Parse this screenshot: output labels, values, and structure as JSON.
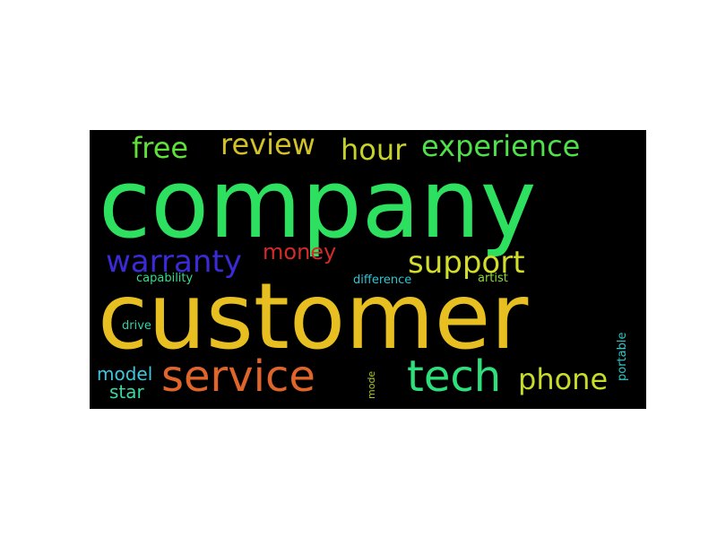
{
  "word_cloud": {
    "background": "#000000",
    "words": [
      {
        "text": "company",
        "color": "#2ee05f"
      },
      {
        "text": "customer",
        "color": "#e8bf21"
      },
      {
        "text": "service",
        "color": "#e0652a"
      },
      {
        "text": "tech",
        "color": "#2ee07c"
      },
      {
        "text": "free",
        "color": "#5fe03a"
      },
      {
        "text": "review",
        "color": "#d2c22a"
      },
      {
        "text": "hour",
        "color": "#c4d22a"
      },
      {
        "text": "experience",
        "color": "#4fe04a"
      },
      {
        "text": "warranty",
        "color": "#3a2ad8"
      },
      {
        "text": "money",
        "color": "#d42a2a"
      },
      {
        "text": "support",
        "color": "#d2dc2a"
      },
      {
        "text": "phone",
        "color": "#c8dc2a"
      },
      {
        "text": "capability",
        "color": "#3ad88c"
      },
      {
        "text": "difference",
        "color": "#2ec4d2"
      },
      {
        "text": "artist",
        "color": "#8ad838"
      },
      {
        "text": "drive",
        "color": "#2ed2a8"
      },
      {
        "text": "model",
        "color": "#3ac8dc"
      },
      {
        "text": "star",
        "color": "#3ad8a0"
      },
      {
        "text": "mode",
        "color": "#a8c82a"
      },
      {
        "text": "portable",
        "color": "#2ec8c8"
      }
    ]
  }
}
